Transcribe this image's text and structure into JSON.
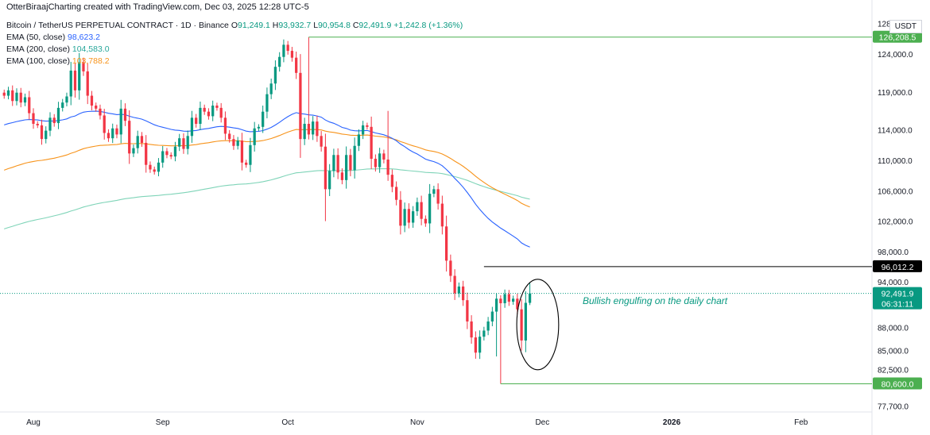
{
  "header": {
    "created_by": "OtterBiraajCharting created with TradingView.com, Dec 03, 2025 12:28 UTC-5",
    "symbol": "Bitcoin / TetherUS PERPETUAL CONTRACT · 1D · Binance",
    "o_label": "O",
    "o_val": "91,249.1",
    "h_label": "H",
    "h_val": "93,932.7",
    "l_label": "L",
    "l_val": "90,954.8",
    "c_label": "C",
    "c_val": "92,491.9",
    "change": "+1,242.8 (+1.36%)",
    "ema50_label": "EMA (50, close)",
    "ema50_val": "98,623.2",
    "ema200_label": "EMA (200, close)",
    "ema200_val": "104,583.0",
    "ema100_label": "EMA (100, close)",
    "ema100_val": "103,788.2"
  },
  "currency": "USDT",
  "annotation": "Bullish engulfing on the daily chart",
  "chart_data": {
    "type": "candlestick",
    "symbol": "BTCUSDT.P",
    "interval": "1D",
    "ylim": [
      77000,
      129000
    ],
    "y_ticks": [
      {
        "value": 128000,
        "label": "128,000.0"
      },
      {
        "value": 124000,
        "label": "124,000.0"
      },
      {
        "value": 119000,
        "label": "119,000.0"
      },
      {
        "value": 114000,
        "label": "114,000.0"
      },
      {
        "value": 110000,
        "label": "110,000.0"
      },
      {
        "value": 106000,
        "label": "106,000.0"
      },
      {
        "value": 102000,
        "label": "102,000.0"
      },
      {
        "value": 98000,
        "label": "98,000.0"
      },
      {
        "value": 94000,
        "label": "94,000.0"
      },
      {
        "value": 88000,
        "label": "88,000.0"
      },
      {
        "value": 85000,
        "label": "85,000.0"
      },
      {
        "value": 82500,
        "label": "82,500.0"
      },
      {
        "value": 77700,
        "label": "77,700.0"
      }
    ],
    "x_ticks": [
      {
        "date": "2025-08-01",
        "label": "Aug",
        "bold": false
      },
      {
        "date": "2025-09-01",
        "label": "Sep",
        "bold": false
      },
      {
        "date": "2025-10-01",
        "label": "Oct",
        "bold": false
      },
      {
        "date": "2025-11-01",
        "label": "Nov",
        "bold": false
      },
      {
        "date": "2025-12-01",
        "label": "Dec",
        "bold": false
      },
      {
        "date": "2026-01-01",
        "label": "2026",
        "bold": true
      },
      {
        "date": "2026-02-01",
        "label": "Feb",
        "bold": false
      }
    ],
    "x_range": [
      "2025-07-24",
      "2026-02-18"
    ],
    "start_date": "2025-07-25",
    "closes": [
      118500,
      119200,
      117800,
      118900,
      117600,
      118300,
      116200,
      114800,
      114600,
      112800,
      113900,
      115600,
      114900,
      116900,
      117600,
      118400,
      121800,
      119200,
      122900,
      121700,
      118500,
      117200,
      116800,
      115900,
      113600,
      112900,
      114200,
      113400,
      116800,
      115200,
      110900,
      111600,
      113200,
      112300,
      109400,
      108800,
      108500,
      109700,
      111200,
      110700,
      110500,
      111800,
      112900,
      111500,
      113200,
      115600,
      114800,
      116900,
      116400,
      115800,
      117200,
      116900,
      115600,
      113500,
      112800,
      111900,
      112600,
      109700,
      109400,
      112000,
      114200,
      114400,
      116400,
      118700,
      120100,
      122300,
      123600,
      125200,
      124400,
      123500,
      121500,
      112800,
      114800,
      113400,
      115100,
      113200,
      111800,
      106200,
      108600,
      110700,
      108400,
      107400,
      110700,
      108700,
      111900,
      113400,
      114600,
      114400,
      110200,
      109100,
      110900,
      110100,
      108100,
      106500,
      104800,
      101400,
      103600,
      101800,
      103300,
      104500,
      102300,
      101700,
      105600,
      106200,
      104300,
      101300,
      96800,
      94800,
      92500,
      93400,
      91600,
      88800,
      86700,
      84700,
      86800,
      87600,
      88800,
      90100,
      91800,
      91200,
      92400,
      91400,
      91800,
      90400,
      86300,
      91249,
      92491.9
    ],
    "opens_last": {
      "open": 91249.1,
      "high": 93932.7,
      "low": 90954.8,
      "close": 92491.9
    },
    "ema50_end": 98623.2,
    "ema100_end": 103788.2,
    "ema200_end": 104583.0,
    "levels": [
      {
        "label": "126,208.5",
        "value": 126208.5,
        "color": "#4caf50",
        "from": "2025-10-06"
      },
      {
        "label": "96,012.2",
        "value": 96012.2,
        "color": "#000000",
        "from": "2025-11-17"
      },
      {
        "label": "80,600.0",
        "value": 80600.0,
        "color": "#4caf50",
        "from": "2025-11-21"
      }
    ],
    "last_price": {
      "label": "92,491.9",
      "value": 92491.9,
      "countdown": "06:31:11"
    },
    "highlight": {
      "shape": "ellipse",
      "from": "2025-11-26",
      "to": "2025-12-03"
    }
  }
}
